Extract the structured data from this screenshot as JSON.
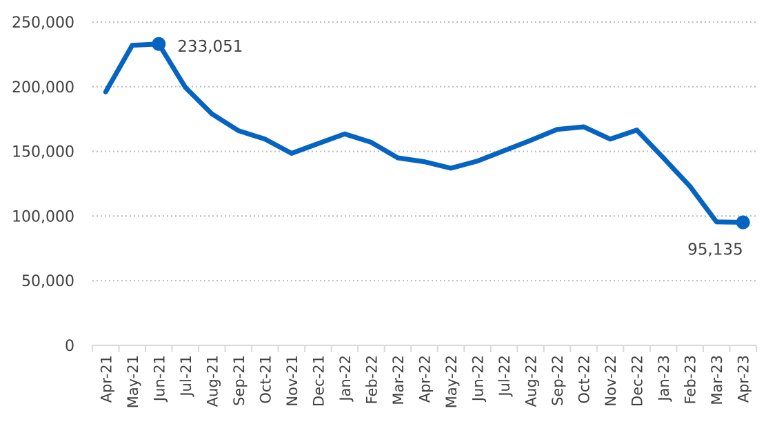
{
  "chart_data": {
    "type": "line",
    "title": "",
    "xlabel": "",
    "ylabel": "",
    "ylim": [
      0,
      250000
    ],
    "y_ticks": [
      0,
      50000,
      100000,
      150000,
      200000,
      250000
    ],
    "y_tick_labels": [
      "0",
      "50,000",
      "100,000",
      "150,000",
      "200,000",
      "250,000"
    ],
    "grid": "horizontal dotted",
    "legend": "none",
    "categories": [
      "Apr-21",
      "May-21",
      "Jun-21",
      "Jul-21",
      "Aug-21",
      "Sep-21",
      "Oct-21",
      "Nov-21",
      "Dec-21",
      "Jan-22",
      "Feb-22",
      "Mar-22",
      "Apr-22",
      "May-22",
      "Jun-22",
      "Jul-22",
      "Aug-22",
      "Sep-22",
      "Oct-22",
      "Nov-22",
      "Dec-22",
      "Jan-23",
      "Feb-23",
      "Mar-23",
      "Apr-23"
    ],
    "series": [
      {
        "values": [
          196000,
          232000,
          233051,
          199500,
          179000,
          166000,
          159500,
          148500,
          156000,
          163500,
          157000,
          145000,
          142000,
          137000,
          142500,
          150500,
          158500,
          167000,
          169000,
          159500,
          166500,
          145000,
          123000,
          95500,
          95135
        ],
        "color": "#0563C1"
      }
    ],
    "annotations": [
      {
        "index": 2,
        "label": "233,051",
        "placement": "right"
      },
      {
        "index": 24,
        "label": "95,135",
        "placement": "below-left"
      }
    ],
    "colors": {
      "line": "#0563C1",
      "grid": "#BFBFBF",
      "axis": "#D9D9D9",
      "text": "#404040"
    }
  }
}
